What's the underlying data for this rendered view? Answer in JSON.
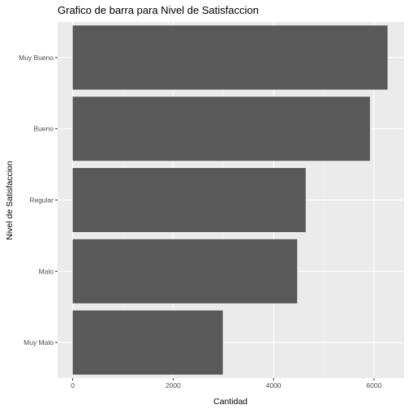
{
  "chart_data": {
    "type": "bar",
    "orientation": "horizontal",
    "title": "Grafico de barra para Nivel de Satisfaccion",
    "xlabel": "Cantidad",
    "ylabel": "Nivel de Satisfaccion",
    "categories": [
      "Muy Bueno",
      "Bueno",
      "Regular",
      "Malo",
      "Muy Malo"
    ],
    "values": [
      6270,
      5920,
      4640,
      4470,
      2990
    ],
    "xlim": [
      -300,
      6600
    ],
    "xticks": [
      0,
      2000,
      4000,
      6000
    ],
    "xtick_labels": [
      "0",
      "2000",
      "4000",
      "6000"
    ],
    "grid": true,
    "legend": "none",
    "colors": {
      "bar": "#595959",
      "panel": "#ebebeb",
      "grid_major": "#ffffff",
      "grid_minor": "#f4f4f4",
      "tick": "#333333"
    }
  }
}
